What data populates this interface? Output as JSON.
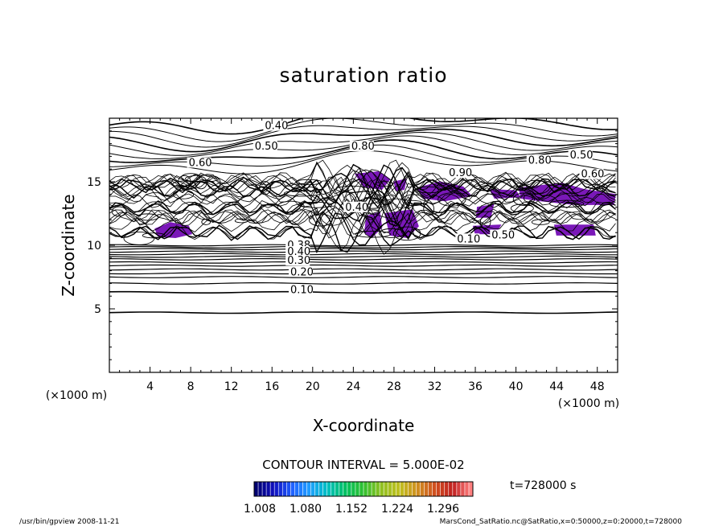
{
  "chart_data": {
    "type": "contour",
    "title": "saturation ratio",
    "xlabel": "X-coordinate",
    "ylabel": "Z-coordinate",
    "xunit": "(×1000 m)",
    "yunit": "(×1000 m)",
    "xlim": [
      0,
      50
    ],
    "ylim": [
      0,
      20
    ],
    "xticks": [
      4,
      8,
      12,
      16,
      20,
      24,
      28,
      32,
      36,
      40,
      44,
      48
    ],
    "yticks": [
      5,
      10,
      15
    ],
    "contour_interval_text": "CONTOUR INTERVAL = 5.000E-02",
    "contour_labels": [
      {
        "text": "0.40",
        "x": 15.3,
        "z": 19.2
      },
      {
        "text": "0.50",
        "x": 14.3,
        "z": 17.6
      },
      {
        "text": "0.60",
        "x": 7.8,
        "z": 16.3
      },
      {
        "text": "0.80",
        "x": 23.8,
        "z": 17.6
      },
      {
        "text": "0.90",
        "x": 33.4,
        "z": 15.5
      },
      {
        "text": "0.80",
        "x": 41.2,
        "z": 16.5
      },
      {
        "text": "0.50",
        "x": 45.3,
        "z": 16.9
      },
      {
        "text": "0.60",
        "x": 46.4,
        "z": 15.4
      },
      {
        "text": "0.40",
        "x": 23.2,
        "z": 12.8
      },
      {
        "text": "0.10",
        "x": 34.2,
        "z": 10.3
      },
      {
        "text": "0.50",
        "x": 37.6,
        "z": 10.6
      },
      {
        "text": "0.38",
        "x": 17.5,
        "z": 9.8
      },
      {
        "text": "0.40",
        "x": 17.5,
        "z": 9.3
      },
      {
        "text": "0.30",
        "x": 17.5,
        "z": 8.6
      },
      {
        "text": "0.20",
        "x": 17.8,
        "z": 7.7
      },
      {
        "text": "0.10",
        "x": 17.8,
        "z": 6.3
      }
    ],
    "shaded_regions_value_range": [
      1.008,
      1.296
    ],
    "colorbar": {
      "ticks": [
        "1.008",
        "1.080",
        "1.152",
        "1.224",
        "1.296"
      ],
      "colors": [
        "#000070",
        "#1010c0",
        "#2060ff",
        "#20a0ff",
        "#00c0c0",
        "#00c060",
        "#30c030",
        "#90c020",
        "#c0c020",
        "#d09020",
        "#d05020",
        "#c02020",
        "#ff8080"
      ]
    },
    "time_label": "t=728000 s",
    "grid": false
  },
  "footer": {
    "left": "/usr/bin/gpview   2008-11-21",
    "right": "MarsCond_SatRatio.nc@SatRatio,x=0:50000,z=0:20000,t=728000"
  },
  "colors": {
    "shade": "#7a18b8",
    "line": "#000000"
  }
}
